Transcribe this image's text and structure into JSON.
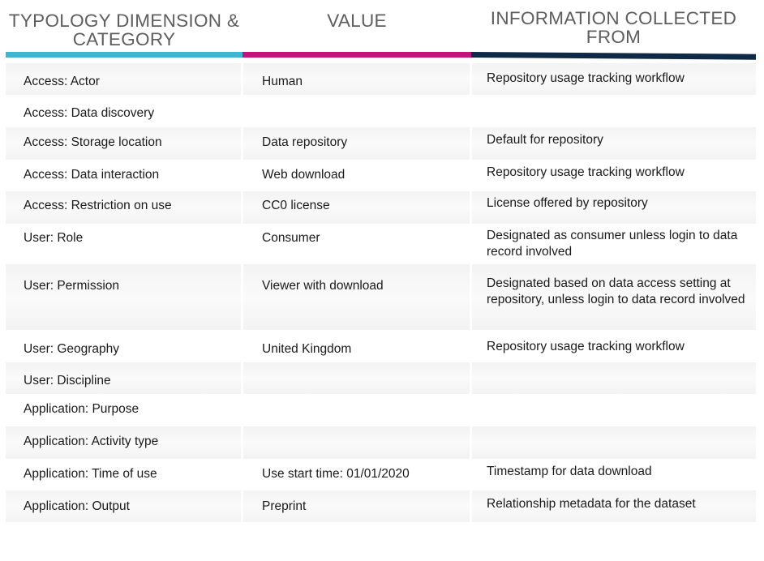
{
  "headers": {
    "col1": "TYPOLOGY DIMENSION & CATEGORY",
    "col2": "VALUE",
    "col3": "INFORMATION COLLECTED FROM"
  },
  "colors": {
    "bar1": "#3bb7d4",
    "bar2": "#c2137a",
    "bar3": "#0e2a47",
    "header_text": "#5e5e5e"
  },
  "rows": [
    {
      "dimension": "Access: Actor",
      "value": "Human",
      "source": "Repository usage tracking workflow"
    },
    {
      "dimension": "Access: Data discovery",
      "value": "",
      "source": ""
    },
    {
      "dimension": "Access: Storage location",
      "value": "Data repository",
      "source": "Default for repository"
    },
    {
      "dimension": "Access: Data interaction",
      "value": "Web download",
      "source": "Repository usage tracking workflow"
    },
    {
      "dimension": "Access: Restriction on use",
      "value": "CC0 license",
      "source": "License offered by repository"
    },
    {
      "dimension": "User: Role",
      "value": "Consumer",
      "source": "Designated as consumer unless login to data record involved"
    },
    {
      "dimension": "User: Permission",
      "value": "Viewer with download",
      "source": "Designated based on data access setting at repository,  unless login to data record involved"
    },
    {
      "dimension": "User: Geography",
      "value": "United Kingdom",
      "source": "Repository usage tracking workflow"
    },
    {
      "dimension": "User: Discipline",
      "value": "",
      "source": ""
    },
    {
      "dimension": "Application: Purpose",
      "value": "",
      "source": ""
    },
    {
      "dimension": "Application: Activity type",
      "value": "",
      "source": ""
    },
    {
      "dimension": "Application: Time of use",
      "value": "Use start time: 01/01/2020",
      "source": "Timestamp for data download"
    },
    {
      "dimension": "Application: Output",
      "value": "Preprint",
      "source": "Relationship metadata for the dataset"
    }
  ]
}
